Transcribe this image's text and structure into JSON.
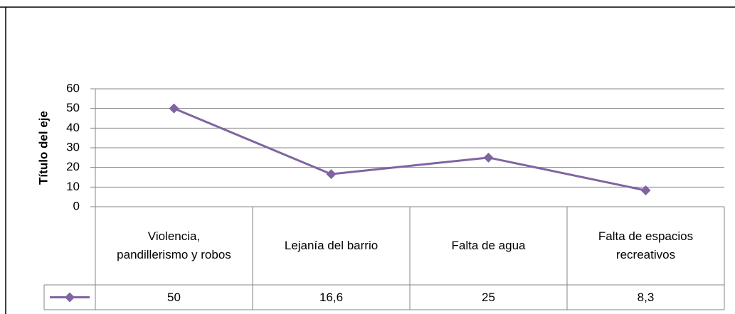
{
  "chart_data": {
    "type": "line",
    "y_label": "Título del eje",
    "categories": [
      "Violencia, pandillerismo y robos",
      "Lejanía del barrio",
      "Falta de agua",
      "Falta de espacios recreativos"
    ],
    "series": [
      {
        "color": "#8064a2",
        "values": [
          50,
          16.6,
          25,
          8.3
        ],
        "value_labels": [
          "50",
          "16,6",
          "25",
          "8,3"
        ]
      }
    ],
    "ylim": [
      0,
      60
    ],
    "yticks": [
      0,
      10,
      20,
      30,
      40,
      50,
      60
    ],
    "grid": true
  }
}
